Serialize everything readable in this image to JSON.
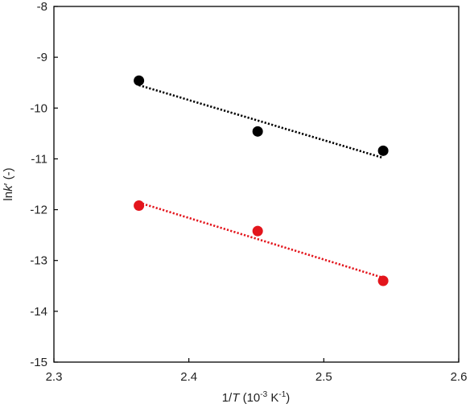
{
  "chart_data": {
    "type": "scatter",
    "xlabel_parts": [
      "1/",
      "T",
      " (10",
      "-3",
      " K",
      "-1",
      ")"
    ],
    "ylabel_parts": [
      "ln",
      "k",
      "′ (-)"
    ],
    "xlim": [
      2.3,
      2.6
    ],
    "ylim": [
      -15,
      -8
    ],
    "xticks": [
      2.3,
      2.4,
      2.5,
      2.6
    ],
    "xtick_labels": [
      "2.3",
      "2.4",
      "2.5",
      "2.6"
    ],
    "yticks": [
      -15,
      -14,
      -13,
      -12,
      -11,
      -10,
      -9,
      -8
    ],
    "ytick_labels": [
      "-15",
      "-14",
      "-13",
      "-12",
      "-11",
      "-10",
      "-9",
      "-8"
    ],
    "grid": false,
    "series": [
      {
        "color": "#000000",
        "x": [
          2.363,
          2.451,
          2.544
        ],
        "y": [
          -9.46,
          -10.46,
          -10.84
        ],
        "trendline": {
          "x": [
            2.363,
            2.544
          ],
          "y": [
            -9.55,
            -10.98
          ]
        }
      },
      {
        "color": "#e3151c",
        "x": [
          2.363,
          2.451,
          2.544
        ],
        "y": [
          -11.92,
          -12.42,
          -13.4
        ],
        "trendline": {
          "x": [
            2.363,
            2.544
          ],
          "y": [
            -11.86,
            -13.34
          ]
        }
      }
    ]
  }
}
